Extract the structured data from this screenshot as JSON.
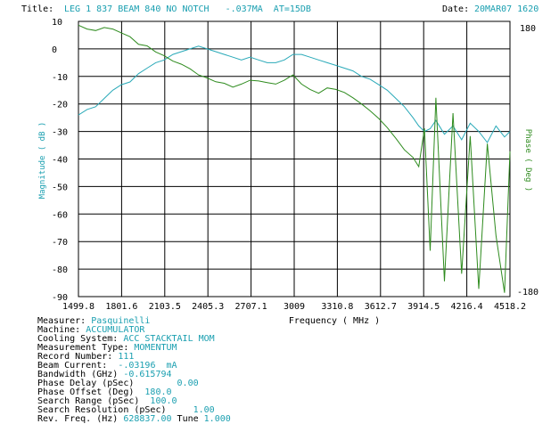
{
  "header": {
    "title_label": "Title:",
    "title_value": "LEG 1 837 BEAM 840 NO NOTCH   -.037MA  AT=15DB",
    "date_label": "Date:",
    "date_value": "20MAR07 1620"
  },
  "axes": {
    "ylabel_left": "Magnitude ( dB )",
    "ylabel_right": "Phase ( Deg )",
    "xlabel": "Frequency ( MHz )",
    "right_top_tick": "180",
    "right_bottom_tick": "-180"
  },
  "colors": {
    "magnitude": "#29a9b8",
    "phase": "#2e8b1e",
    "grid": "#000000",
    "cyan_text": "#1a9fb0"
  },
  "chart_data": {
    "type": "line",
    "title": "LEG 1 837 BEAM 840 NO NOTCH   -.037MA  AT=15DB",
    "xlabel": "Frequency ( MHz )",
    "ylabel": "Magnitude ( dB )",
    "y2label": "Phase ( Deg )",
    "xlim": [
      1499.8,
      4518.2
    ],
    "ylim": [
      -90,
      10
    ],
    "y2lim": [
      -180,
      180
    ],
    "x_ticks": [
      "1499.8",
      "1801.6",
      "2103.5",
      "2405.3",
      "2707.1",
      "3009",
      "3310.8",
      "3612.7",
      "3914.5",
      "4216.4",
      "4518.2"
    ],
    "y_ticks": [
      "10",
      "0",
      "-10",
      "-20",
      "-30",
      "-40",
      "-50",
      "-60",
      "-70",
      "-80",
      "-90"
    ],
    "grid": true,
    "series": [
      {
        "name": "Magnitude",
        "axis": "left",
        "x": [
          1500,
          1560,
          1620,
          1680,
          1740,
          1800,
          1860,
          1920,
          1980,
          2040,
          2100,
          2160,
          2220,
          2280,
          2340,
          2400,
          2460,
          2520,
          2580,
          2640,
          2700,
          2760,
          2820,
          2880,
          2940,
          3000,
          3060,
          3120,
          3180,
          3240,
          3300,
          3360,
          3420,
          3480,
          3540,
          3600,
          3660,
          3720,
          3780,
          3840,
          3880,
          3920,
          3960,
          4000,
          4060,
          4120,
          4180,
          4240,
          4300,
          4360,
          4420,
          4480,
          4518
        ],
        "y": [
          -24,
          -22,
          -21,
          -18,
          -15,
          -13,
          -12,
          -9,
          -7,
          -5,
          -4,
          -2,
          -1,
          0,
          1,
          0,
          -1,
          -2,
          -3,
          -4,
          -3,
          -4,
          -5,
          -5,
          -4,
          -2,
          -2,
          -3,
          -4,
          -5,
          -6,
          -7,
          -8,
          -10,
          -11,
          -13,
          -15,
          -18,
          -21,
          -25,
          -28,
          -30,
          -29,
          -26,
          -31,
          -28,
          -33,
          -27,
          -30,
          -34,
          -28,
          -32,
          -30
        ]
      },
      {
        "name": "Phase",
        "axis": "right",
        "x": [
          1500,
          1560,
          1620,
          1680,
          1740,
          1800,
          1860,
          1920,
          1980,
          2040,
          2100,
          2160,
          2220,
          2280,
          2340,
          2400,
          2460,
          2520,
          2580,
          2640,
          2700,
          2760,
          2820,
          2880,
          2940,
          3000,
          3060,
          3120,
          3180,
          3240,
          3300,
          3360,
          3420,
          3480,
          3540,
          3600,
          3660,
          3720,
          3780,
          3840,
          3880,
          3920,
          3960,
          4000,
          4060,
          4120,
          4180,
          4240,
          4300,
          4360,
          4420,
          4480,
          4518
        ],
        "y": [
          175,
          170,
          168,
          172,
          170,
          165,
          160,
          150,
          148,
          140,
          135,
          128,
          124,
          118,
          110,
          106,
          101,
          99,
          94,
          98,
          103,
          102,
          100,
          98,
          103,
          110,
          98,
          91,
          86,
          93,
          91,
          87,
          80,
          72,
          63,
          53,
          41,
          27,
          12,
          2,
          -10,
          40,
          -120,
          80,
          -160,
          60,
          -150,
          30,
          -170,
          20,
          -100,
          -175,
          10
        ]
      }
    ]
  },
  "info": [
    {
      "label": "Measurer:",
      "value": " Pasquinelli"
    },
    {
      "label": "Machine:",
      "value": " ACCUMULATOR"
    },
    {
      "label": "Cooling System:",
      "value": " ACC STACKTAIL MOM"
    },
    {
      "label": "Measurement Type:",
      "value": " MOMENTUM"
    },
    {
      "label": "Record Number:",
      "value": " 111"
    },
    {
      "label": "Beam Current:",
      "value": "  -.03196  mA"
    },
    {
      "label": "Bandwidth (GHz)",
      "value": " -0.615794"
    },
    {
      "label": "Phase Delay (pSec)",
      "value": "        0.00"
    },
    {
      "label": "Phase Offset (Deg)",
      "value": "  180.0"
    },
    {
      "label": "Search Range (pSec)",
      "value": "  100.0"
    },
    {
      "label": "Search Resolution (pSec)",
      "value": "     1.00"
    },
    {
      "label": "Rev. Freq. (Hz)",
      "value": " 628837.00",
      "extra_label": " Tune",
      "extra_value": " 1.000"
    }
  ]
}
